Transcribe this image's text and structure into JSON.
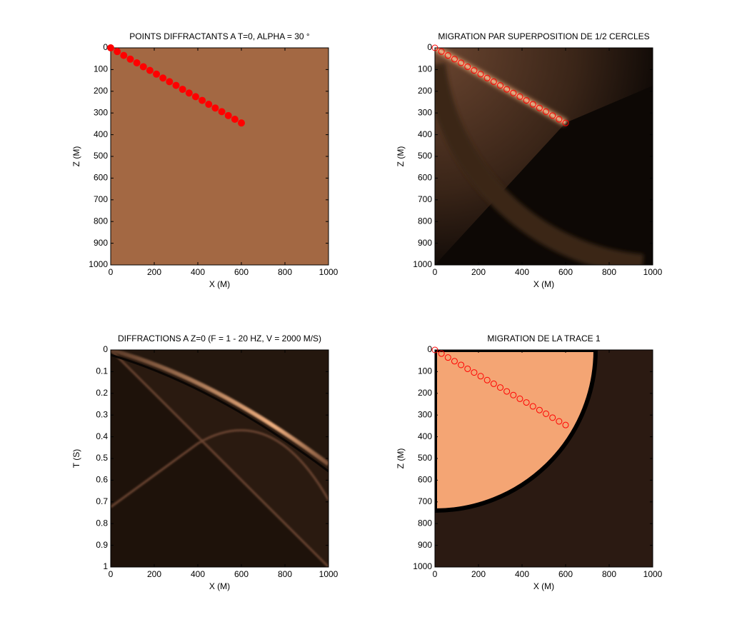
{
  "chart_data": [
    {
      "type": "scatter",
      "title": "POINTS DIFFRACTANTS A T=0, ALPHA = 30 °",
      "xlabel": "X (M)",
      "ylabel": "Z (M)",
      "xlim": [
        0,
        1000
      ],
      "ylim": [
        0,
        1000
      ],
      "y_reversed": true,
      "xticks": [
        0,
        200,
        400,
        600,
        800,
        1000
      ],
      "yticks": [
        0,
        100,
        200,
        300,
        400,
        500,
        600,
        700,
        800,
        900,
        1000
      ],
      "x": [
        0,
        30,
        60,
        90,
        120,
        150,
        180,
        210,
        240,
        270,
        300,
        330,
        360,
        390,
        420,
        450,
        480,
        510,
        540,
        570,
        600
      ],
      "series": [
        {
          "color": "#ff0000",
          "marker": "filled",
          "values": [
            0,
            17,
            35,
            52,
            69,
            87,
            104,
            121,
            139,
            156,
            173,
            191,
            208,
            225,
            242,
            260,
            277,
            294,
            312,
            329,
            346
          ]
        }
      ]
    },
    {
      "type": "scatter",
      "title": "MIGRATION PAR SUPERPOSITION DE 1/2 CERCLES",
      "xlabel": "X (M)",
      "ylabel": "Z (M)",
      "xlim": [
        0,
        1000
      ],
      "ylim": [
        0,
        1000
      ],
      "y_reversed": true,
      "xticks": [
        0,
        200,
        400,
        600,
        800,
        1000
      ],
      "yticks": [
        0,
        100,
        200,
        300,
        400,
        500,
        600,
        700,
        800,
        900,
        1000
      ],
      "x": [
        0,
        30,
        60,
        90,
        120,
        150,
        180,
        210,
        240,
        270,
        300,
        330,
        360,
        390,
        420,
        450,
        480,
        510,
        540,
        570,
        600
      ],
      "series": [
        {
          "color": "#ff0000",
          "marker": "open",
          "values": [
            0,
            17,
            35,
            52,
            69,
            87,
            104,
            121,
            139,
            156,
            173,
            191,
            208,
            225,
            242,
            260,
            277,
            294,
            312,
            329,
            346
          ]
        }
      ]
    },
    {
      "type": "image",
      "title": "DIFFRACTIONS A Z=0 (F = 1 - 20 HZ, V = 2000 M/S)",
      "xlabel": "X (M)",
      "ylabel": "T (S)",
      "xlim": [
        0,
        1000
      ],
      "ylim": [
        0,
        1
      ],
      "y_reversed": true,
      "xticks": [
        0,
        200,
        400,
        600,
        800,
        1000
      ],
      "yticks": [
        0,
        0.1,
        0.2,
        0.3,
        0.4,
        0.5,
        0.6,
        0.7,
        0.8,
        0.9,
        1
      ]
    },
    {
      "type": "scatter",
      "title": "MIGRATION DE LA TRACE 1",
      "xlabel": "X (M)",
      "ylabel": "Z (M)",
      "xlim": [
        0,
        1000
      ],
      "ylim": [
        0,
        1000
      ],
      "y_reversed": true,
      "xticks": [
        0,
        200,
        400,
        600,
        800,
        1000
      ],
      "yticks": [
        0,
        100,
        200,
        300,
        400,
        500,
        600,
        700,
        800,
        900,
        1000
      ],
      "x": [
        0,
        30,
        60,
        90,
        120,
        150,
        180,
        210,
        240,
        270,
        300,
        330,
        360,
        390,
        420,
        450,
        480,
        510,
        540,
        570,
        600
      ],
      "series": [
        {
          "color": "#ff0000",
          "marker": "open",
          "values": [
            0,
            17,
            35,
            52,
            69,
            87,
            104,
            121,
            139,
            156,
            173,
            191,
            208,
            225,
            242,
            260,
            277,
            294,
            312,
            329,
            346
          ]
        }
      ]
    }
  ]
}
